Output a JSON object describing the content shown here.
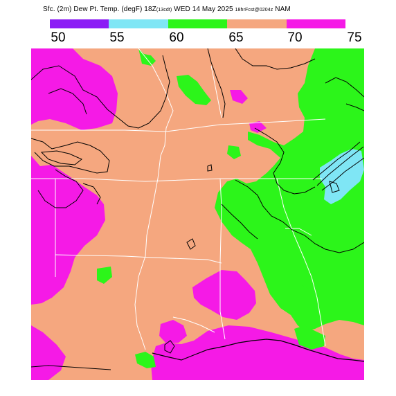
{
  "title": {
    "main": "Sfc. (2m) Dew Pt. Temp. (degF) 18Z",
    "local_time": "(13cdt)",
    "date": "WED 14 May 2025",
    "forecast": "18hrFcst@0204z",
    "model": "NAM"
  },
  "colorbar": {
    "labels": [
      "50",
      "55",
      "60",
      "65",
      "70",
      "75"
    ],
    "colors": [
      "#8b1cf5",
      "#7fe6f5",
      "#2cf51a",
      "#f5a77f",
      "#f51ae6"
    ]
  },
  "map": {
    "background_color": "#f5a77f",
    "fills": {
      "dew_50_55": "#8b1cf5",
      "dew_55_60": "#7fe6f5",
      "dew_60_65": "#2cf51a",
      "dew_65_70": "#f5a77f",
      "dew_70_75": "#f51ae6"
    }
  }
}
